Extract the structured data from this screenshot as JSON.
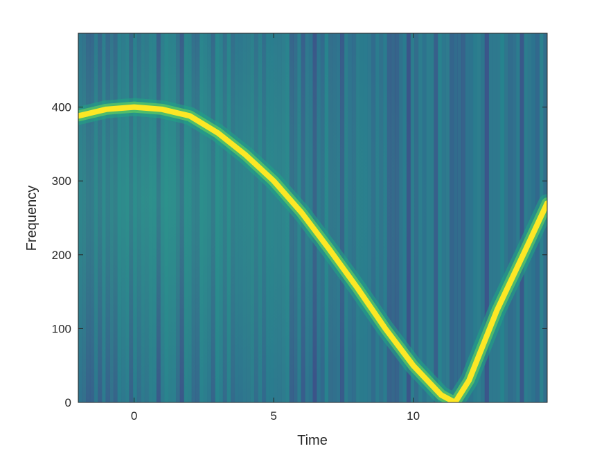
{
  "chart_data": {
    "type": "heatmap",
    "title": "",
    "xlabel": "Time",
    "ylabel": "Frequency",
    "xlim": [
      -2,
      14.8
    ],
    "ylim": [
      0,
      500
    ],
    "xticks": [
      0,
      5,
      10
    ],
    "yticks": [
      0,
      100,
      200,
      300,
      400
    ],
    "xtick_labels": [
      "0",
      "5",
      "10"
    ],
    "ytick_labels": [
      "0",
      "100",
      "200",
      "300",
      "400"
    ],
    "colormap": "viridis",
    "grid": false,
    "ridge": {
      "description_of_shape": "quadratic chirp reflected at zero",
      "points": [
        {
          "t": -2.0,
          "f": 388
        },
        {
          "t": -1.0,
          "f": 397
        },
        {
          "t": 0.0,
          "f": 400
        },
        {
          "t": 1.0,
          "f": 397
        },
        {
          "t": 2.0,
          "f": 388
        },
        {
          "t": 3.0,
          "f": 365
        },
        {
          "t": 4.0,
          "f": 335
        },
        {
          "t": 5.0,
          "f": 300
        },
        {
          "t": 6.0,
          "f": 257
        },
        {
          "t": 7.0,
          "f": 207
        },
        {
          "t": 8.0,
          "f": 155
        },
        {
          "t": 9.0,
          "f": 100
        },
        {
          "t": 10.0,
          "f": 50
        },
        {
          "t": 11.0,
          "f": 10
        },
        {
          "t": 11.5,
          "f": 0
        },
        {
          "t": 12.0,
          "f": 30
        },
        {
          "t": 13.0,
          "f": 125
        },
        {
          "t": 14.0,
          "f": 205
        },
        {
          "t": 14.8,
          "f": 270
        }
      ]
    },
    "colors": {
      "ridge": "#fde725",
      "background_mid": "#2c8a8a",
      "background_dark": "#3b3f8c"
    }
  }
}
